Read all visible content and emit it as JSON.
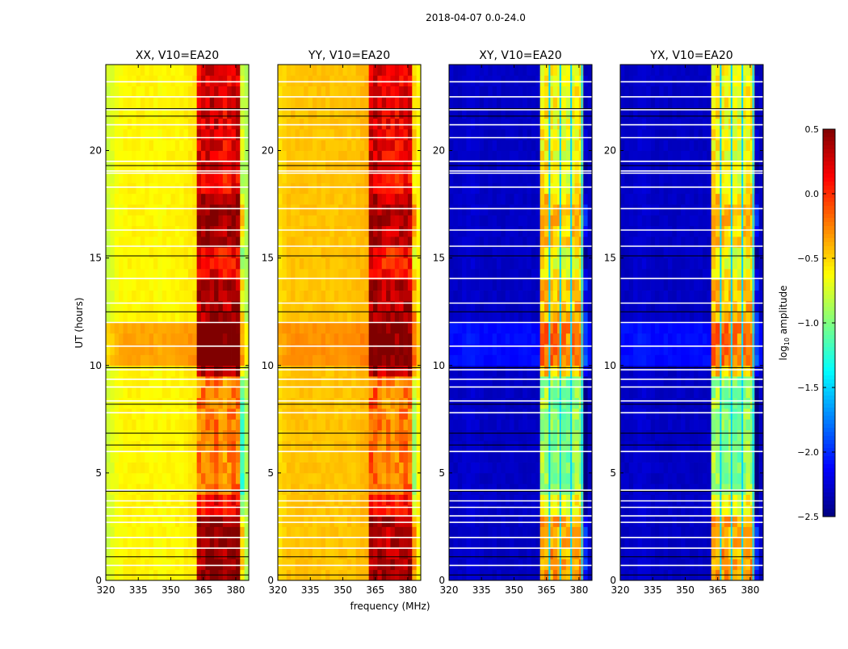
{
  "chart_data": {
    "type": "heatmap",
    "title": "2018-04-07 0.0-24.0",
    "xlabel": "frequency (MHz)",
    "ylabel": "UT (hours)",
    "xlim": [
      320,
      386
    ],
    "ylim": [
      0,
      24
    ],
    "xticks": [
      "320",
      "335",
      "350",
      "365",
      "380"
    ],
    "xtick_values": [
      320,
      335,
      350,
      365,
      380
    ],
    "yticks": [
      "0",
      "5",
      "10",
      "15",
      "20"
    ],
    "ytick_values": [
      0,
      5,
      10,
      15,
      20
    ],
    "colorbar": {
      "label": "log10 amplitude",
      "label_main": "log",
      "label_sub": "10",
      "label_rest": " amplitude",
      "range": [
        -2.5,
        0.5
      ],
      "ticks": [
        "0.5",
        "0.0",
        "−0.5",
        "−1.0",
        "−1.5",
        "−2.0",
        "−2.5"
      ],
      "tick_values": [
        0.5,
        0.0,
        -0.5,
        -1.0,
        -1.5,
        -2.0,
        -2.5
      ],
      "colormap": "jet"
    },
    "profile_freqs_mhz": [
      320,
      325,
      330,
      335,
      340,
      345,
      350,
      355,
      360,
      365,
      370,
      375,
      380,
      385
    ],
    "panels": [
      {
        "title": "XX, V10=EA20",
        "freq_profile": [
          -0.8,
          -0.65,
          -0.6,
          -0.6,
          -0.6,
          -0.62,
          -0.6,
          -0.6,
          -0.55,
          0.1,
          0.2,
          0.05,
          0.15,
          -0.85
        ],
        "hot_band_mhz": [
          362,
          383
        ],
        "time_offsets_hot": [
          [
            0.2,
            3.0,
            0.35
          ],
          [
            4.0,
            9.5,
            -0.35
          ],
          [
            9.6,
            14.0,
            0.25
          ],
          [
            15.5,
            18.0,
            0.3
          ],
          [
            19.0,
            24.0,
            0.1
          ]
        ],
        "time_offsets_all": [
          [
            10.0,
            11.8,
            0.25
          ]
        ],
        "vertical_lines_mhz": [],
        "vertical_line_value": -1.5
      },
      {
        "title": "YY, V10=EA20",
        "freq_profile": [
          -0.55,
          -0.45,
          -0.45,
          -0.45,
          -0.45,
          -0.45,
          -0.45,
          -0.45,
          -0.4,
          0.15,
          0.05,
          0.05,
          0.1,
          -0.6
        ],
        "hot_band_mhz": [
          362,
          383
        ],
        "time_offsets_hot": [
          [
            0.2,
            3.0,
            0.3
          ],
          [
            4.0,
            9.5,
            -0.3
          ],
          [
            9.6,
            14.0,
            0.25
          ],
          [
            15.5,
            18.0,
            0.25
          ],
          [
            19.0,
            24.0,
            0.1
          ]
        ],
        "time_offsets_all": [
          [
            10.0,
            11.8,
            0.15
          ]
        ],
        "vertical_lines_mhz": [],
        "vertical_line_value": -1.5
      },
      {
        "title": "XY, V10=EA20",
        "freq_profile": [
          -2.3,
          -2.3,
          -2.25,
          -2.3,
          -2.3,
          -2.3,
          -2.3,
          -2.3,
          -2.3,
          -0.6,
          -0.65,
          -0.7,
          -0.6,
          -2.3
        ],
        "hot_band_mhz": [
          362,
          383
        ],
        "time_offsets_hot": [
          [
            0.2,
            3.0,
            0.3
          ],
          [
            4.0,
            9.5,
            -0.3
          ],
          [
            9.6,
            14.0,
            0.2
          ],
          [
            15.5,
            18.0,
            0.2
          ]
        ],
        "time_offsets_all": [
          [
            10.0,
            11.8,
            0.2
          ]
        ],
        "vertical_lines_mhz": [
          366,
          371,
          376,
          381
        ],
        "vertical_line_value": -1.5
      },
      {
        "title": "YX, V10=EA20",
        "freq_profile": [
          -2.3,
          -2.3,
          -2.25,
          -2.3,
          -2.3,
          -2.3,
          -2.3,
          -2.3,
          -2.3,
          -0.6,
          -0.65,
          -0.7,
          -0.6,
          -2.3
        ],
        "hot_band_mhz": [
          362,
          383
        ],
        "time_offsets_hot": [
          [
            0.2,
            3.0,
            0.3
          ],
          [
            4.0,
            9.5,
            -0.3
          ],
          [
            9.6,
            14.0,
            0.2
          ],
          [
            15.5,
            18.0,
            0.2
          ]
        ],
        "time_offsets_all": [
          [
            10.0,
            11.8,
            0.2
          ]
        ],
        "vertical_lines_mhz": [
          366,
          371,
          376,
          381
        ],
        "vertical_line_value": -1.5
      }
    ],
    "flagged_hours_white": [
      23.2,
      22.5,
      21.9,
      21.2,
      20.6,
      19.5,
      19.05,
      18.95,
      18.3,
      17.3,
      16.3,
      15.55,
      14.05,
      12.9,
      12.0,
      10.9,
      9.8,
      9.36,
      9.0,
      8.35,
      7.8,
      6.0,
      4.2,
      3.7,
      3.4,
      3.0,
      2.7,
      2.0,
      1.5,
      0.7
    ],
    "flagged_hours_black": [
      21.95,
      21.6,
      19.3,
      15.1,
      12.5,
      9.9,
      8.2,
      6.85,
      6.3,
      4.15,
      1.1,
      0.25
    ]
  }
}
